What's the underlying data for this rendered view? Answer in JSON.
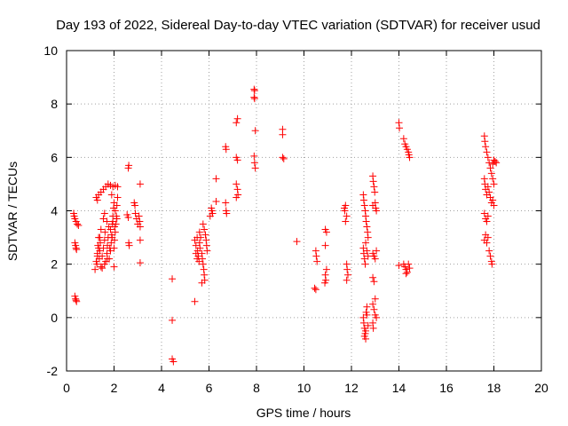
{
  "chart_data": {
    "type": "scatter",
    "title": "Day 193 of 2022, Sidereal Day-to-day VTEC variation (SDTVAR) for receiver usud",
    "xlabel": "GPS time / hours",
    "ylabel": "SDTVAR / TECUs",
    "xlim": [
      0,
      20
    ],
    "ylim": [
      -2,
      10
    ],
    "xticks": [
      0,
      2,
      4,
      6,
      8,
      10,
      12,
      14,
      16,
      18,
      20
    ],
    "yticks": [
      -2,
      0,
      2,
      4,
      6,
      8,
      10
    ],
    "grid": true,
    "marker": "plus",
    "color": "#ff0000",
    "series": [
      {
        "name": "sdtvar",
        "points": [
          [
            0.3,
            3.9
          ],
          [
            0.32,
            3.8
          ],
          [
            0.35,
            3.7
          ],
          [
            0.4,
            3.6
          ],
          [
            0.45,
            3.5
          ],
          [
            0.5,
            3.45
          ],
          [
            0.35,
            2.8
          ],
          [
            0.38,
            2.7
          ],
          [
            0.4,
            2.6
          ],
          [
            0.42,
            2.55
          ],
          [
            0.35,
            0.8
          ],
          [
            0.38,
            0.7
          ],
          [
            0.4,
            0.65
          ],
          [
            0.42,
            0.6
          ],
          [
            1.2,
            1.8
          ],
          [
            1.25,
            2.1
          ],
          [
            1.3,
            2.4
          ],
          [
            1.32,
            2.7
          ],
          [
            1.35,
            3.0
          ],
          [
            1.38,
            2.2
          ],
          [
            1.4,
            2.5
          ],
          [
            1.42,
            2.8
          ],
          [
            1.45,
            1.9
          ],
          [
            1.5,
            2.3
          ],
          [
            1.55,
            2.6
          ],
          [
            1.6,
            2.9
          ],
          [
            1.62,
            3.2
          ],
          [
            1.65,
            2.1
          ],
          [
            1.7,
            2.4
          ],
          [
            1.72,
            2.7
          ],
          [
            1.75,
            3.0
          ],
          [
            1.78,
            3.4
          ],
          [
            1.8,
            2.2
          ],
          [
            1.85,
            2.5
          ],
          [
            1.88,
            2.8
          ],
          [
            1.9,
            3.1
          ],
          [
            1.92,
            3.5
          ],
          [
            1.95,
            3.8
          ],
          [
            1.98,
            4.1
          ],
          [
            2.0,
            2.6
          ],
          [
            2.02,
            2.9
          ],
          [
            2.05,
            3.2
          ],
          [
            2.08,
            3.5
          ],
          [
            2.1,
            3.8
          ],
          [
            2.12,
            4.2
          ],
          [
            2.15,
            4.5
          ],
          [
            2.0,
            1.9
          ],
          [
            1.6,
            2.0
          ],
          [
            1.5,
            1.85
          ],
          [
            1.25,
            4.5
          ],
          [
            1.35,
            4.6
          ],
          [
            1.45,
            4.7
          ],
          [
            1.55,
            4.8
          ],
          [
            1.65,
            4.9
          ],
          [
            1.75,
            5.0
          ],
          [
            1.85,
            4.95
          ],
          [
            1.95,
            4.9
          ],
          [
            2.05,
            4.95
          ],
          [
            2.15,
            4.9
          ],
          [
            1.3,
            4.4
          ],
          [
            1.9,
            4.6
          ],
          [
            2.0,
            4.3
          ],
          [
            2.05,
            4.0
          ],
          [
            1.95,
            3.6
          ],
          [
            1.85,
            3.3
          ],
          [
            1.7,
            3.6
          ],
          [
            1.6,
            3.9
          ],
          [
            1.55,
            3.7
          ],
          [
            1.45,
            3.3
          ],
          [
            1.4,
            3.0
          ],
          [
            1.35,
            2.6
          ],
          [
            1.3,
            2.3
          ],
          [
            1.28,
            2.0
          ],
          [
            1.72,
            2.2
          ],
          [
            1.82,
            2.6
          ],
          [
            1.92,
            3.0
          ],
          [
            2.02,
            3.4
          ],
          [
            2.12,
            3.7
          ],
          [
            2.6,
            5.6
          ],
          [
            2.62,
            5.7
          ],
          [
            2.55,
            3.85
          ],
          [
            2.6,
            3.75
          ],
          [
            2.62,
            2.8
          ],
          [
            2.64,
            2.7
          ],
          [
            2.85,
            4.3
          ],
          [
            2.88,
            4.2
          ],
          [
            2.9,
            3.9
          ],
          [
            2.95,
            3.7
          ],
          [
            3.0,
            3.5
          ],
          [
            3.05,
            3.8
          ],
          [
            3.08,
            3.6
          ],
          [
            3.1,
            3.4
          ],
          [
            3.1,
            5.0
          ],
          [
            3.1,
            2.9
          ],
          [
            3.1,
            2.05
          ],
          [
            4.45,
            1.45
          ],
          [
            4.45,
            -0.1
          ],
          [
            4.45,
            -1.55
          ],
          [
            4.5,
            -1.65
          ],
          [
            5.4,
            0.6
          ],
          [
            5.4,
            2.9
          ],
          [
            5.45,
            2.7
          ],
          [
            5.5,
            3.0
          ],
          [
            5.52,
            2.5
          ],
          [
            5.55,
            2.3
          ],
          [
            5.58,
            2.1
          ],
          [
            5.6,
            2.8
          ],
          [
            5.62,
            2.6
          ],
          [
            5.65,
            3.0
          ],
          [
            5.7,
            2.4
          ],
          [
            5.72,
            2.2
          ],
          [
            5.75,
            2.0
          ],
          [
            5.78,
            1.8
          ],
          [
            5.8,
            1.6
          ],
          [
            5.82,
            1.4
          ],
          [
            5.7,
            1.3
          ],
          [
            5.75,
            3.5
          ],
          [
            5.8,
            3.3
          ],
          [
            5.85,
            3.1
          ],
          [
            5.88,
            2.9
          ],
          [
            5.9,
            2.7
          ],
          [
            5.92,
            2.5
          ],
          [
            5.6,
            3.2
          ],
          [
            5.5,
            2.2
          ],
          [
            5.45,
            2.4
          ],
          [
            6.1,
            4.1
          ],
          [
            6.12,
            4.0
          ],
          [
            6.15,
            3.9
          ],
          [
            6.05,
            3.8
          ],
          [
            6.3,
            5.2
          ],
          [
            6.3,
            4.35
          ],
          [
            6.7,
            6.4
          ],
          [
            6.72,
            6.3
          ],
          [
            6.7,
            4.3
          ],
          [
            6.72,
            4.0
          ],
          [
            6.74,
            3.9
          ],
          [
            7.15,
            7.3
          ],
          [
            7.2,
            7.45
          ],
          [
            7.15,
            6.0
          ],
          [
            7.2,
            5.9
          ],
          [
            7.15,
            5.0
          ],
          [
            7.2,
            4.8
          ],
          [
            7.22,
            4.6
          ],
          [
            7.15,
            4.5
          ],
          [
            7.9,
            8.55
          ],
          [
            7.92,
            8.5
          ],
          [
            7.9,
            8.25
          ],
          [
            7.92,
            8.2
          ],
          [
            7.95,
            7.0
          ],
          [
            7.9,
            6.05
          ],
          [
            7.92,
            5.8
          ],
          [
            7.95,
            5.6
          ],
          [
            9.1,
            7.05
          ],
          [
            9.1,
            6.85
          ],
          [
            9.1,
            6.0
          ],
          [
            9.15,
            5.95
          ],
          [
            9.7,
            2.85
          ],
          [
            10.5,
            2.5
          ],
          [
            10.52,
            2.3
          ],
          [
            10.55,
            2.1
          ],
          [
            10.45,
            1.1
          ],
          [
            10.5,
            1.05
          ],
          [
            10.9,
            3.3
          ],
          [
            10.95,
            3.2
          ],
          [
            10.9,
            2.7
          ],
          [
            10.95,
            1.8
          ],
          [
            10.9,
            1.6
          ],
          [
            10.92,
            1.4
          ],
          [
            10.88,
            1.3
          ],
          [
            11.7,
            4.1
          ],
          [
            11.75,
            4.2
          ],
          [
            11.72,
            4.0
          ],
          [
            11.8,
            3.8
          ],
          [
            11.75,
            3.6
          ],
          [
            11.8,
            2.0
          ],
          [
            11.82,
            1.8
          ],
          [
            11.85,
            1.6
          ],
          [
            11.8,
            1.4
          ],
          [
            12.5,
            4.6
          ],
          [
            12.52,
            4.4
          ],
          [
            12.55,
            4.2
          ],
          [
            12.58,
            4.0
          ],
          [
            12.6,
            3.8
          ],
          [
            12.62,
            3.6
          ],
          [
            12.65,
            3.4
          ],
          [
            12.68,
            3.2
          ],
          [
            12.7,
            3.0
          ],
          [
            12.5,
            2.6
          ],
          [
            12.52,
            2.4
          ],
          [
            12.55,
            2.2
          ],
          [
            12.58,
            2.0
          ],
          [
            12.6,
            2.8
          ],
          [
            12.65,
            2.5
          ],
          [
            12.7,
            2.3
          ],
          [
            12.5,
            0.0
          ],
          [
            12.52,
            -0.2
          ],
          [
            12.55,
            -0.4
          ],
          [
            12.58,
            -0.6
          ],
          [
            12.6,
            -0.8
          ],
          [
            12.62,
            0.2
          ],
          [
            12.65,
            0.4
          ],
          [
            12.7,
            -0.3
          ],
          [
            12.55,
            -0.7
          ],
          [
            12.6,
            -0.5
          ],
          [
            12.65,
            0.1
          ],
          [
            12.9,
            5.3
          ],
          [
            12.92,
            5.1
          ],
          [
            12.95,
            4.9
          ],
          [
            12.98,
            4.7
          ],
          [
            13.0,
            4.3
          ],
          [
            13.02,
            4.1
          ],
          [
            13.05,
            4.0
          ],
          [
            12.9,
            4.2
          ],
          [
            12.9,
            2.4
          ],
          [
            12.95,
            2.3
          ],
          [
            13.0,
            2.2
          ],
          [
            13.05,
            2.5
          ],
          [
            12.9,
            1.5
          ],
          [
            12.95,
            1.35
          ],
          [
            12.9,
            0.5
          ],
          [
            12.95,
            0.3
          ],
          [
            13.0,
            0.1
          ],
          [
            13.05,
            0.0
          ],
          [
            13.0,
            0.7
          ],
          [
            12.9,
            -0.2
          ],
          [
            12.92,
            -0.4
          ],
          [
            14.0,
            7.3
          ],
          [
            14.02,
            7.1
          ],
          [
            14.0,
            1.95
          ],
          [
            14.2,
            6.7
          ],
          [
            14.25,
            6.5
          ],
          [
            14.3,
            6.4
          ],
          [
            14.35,
            6.3
          ],
          [
            14.4,
            6.2
          ],
          [
            14.42,
            6.1
          ],
          [
            14.45,
            6.0
          ],
          [
            14.2,
            2.0
          ],
          [
            14.25,
            1.9
          ],
          [
            14.3,
            1.8
          ],
          [
            14.35,
            1.7
          ],
          [
            14.4,
            2.0
          ],
          [
            14.45,
            1.85
          ],
          [
            14.3,
            1.65
          ],
          [
            17.6,
            6.8
          ],
          [
            17.62,
            6.6
          ],
          [
            17.65,
            6.4
          ],
          [
            17.7,
            6.2
          ],
          [
            17.75,
            6.0
          ],
          [
            17.8,
            5.8
          ],
          [
            17.85,
            5.6
          ],
          [
            17.9,
            5.4
          ],
          [
            17.95,
            5.2
          ],
          [
            18.0,
            5.0
          ],
          [
            17.6,
            5.2
          ],
          [
            17.62,
            5.0
          ],
          [
            17.65,
            4.8
          ],
          [
            17.7,
            4.6
          ],
          [
            17.75,
            4.9
          ],
          [
            17.8,
            4.7
          ],
          [
            17.85,
            4.5
          ],
          [
            17.9,
            4.3
          ],
          [
            17.6,
            3.9
          ],
          [
            17.65,
            3.7
          ],
          [
            17.7,
            3.6
          ],
          [
            17.75,
            3.8
          ],
          [
            17.6,
            2.9
          ],
          [
            17.65,
            3.1
          ],
          [
            17.7,
            2.8
          ],
          [
            17.75,
            3.0
          ],
          [
            17.8,
            2.5
          ],
          [
            17.85,
            2.3
          ],
          [
            17.9,
            2.1
          ],
          [
            17.92,
            2.0
          ],
          [
            18.0,
            5.9
          ],
          [
            18.05,
            5.85
          ],
          [
            18.1,
            5.8
          ],
          [
            17.95,
            5.75
          ],
          [
            18.0,
            4.2
          ],
          [
            17.95,
            4.4
          ]
        ]
      }
    ]
  }
}
